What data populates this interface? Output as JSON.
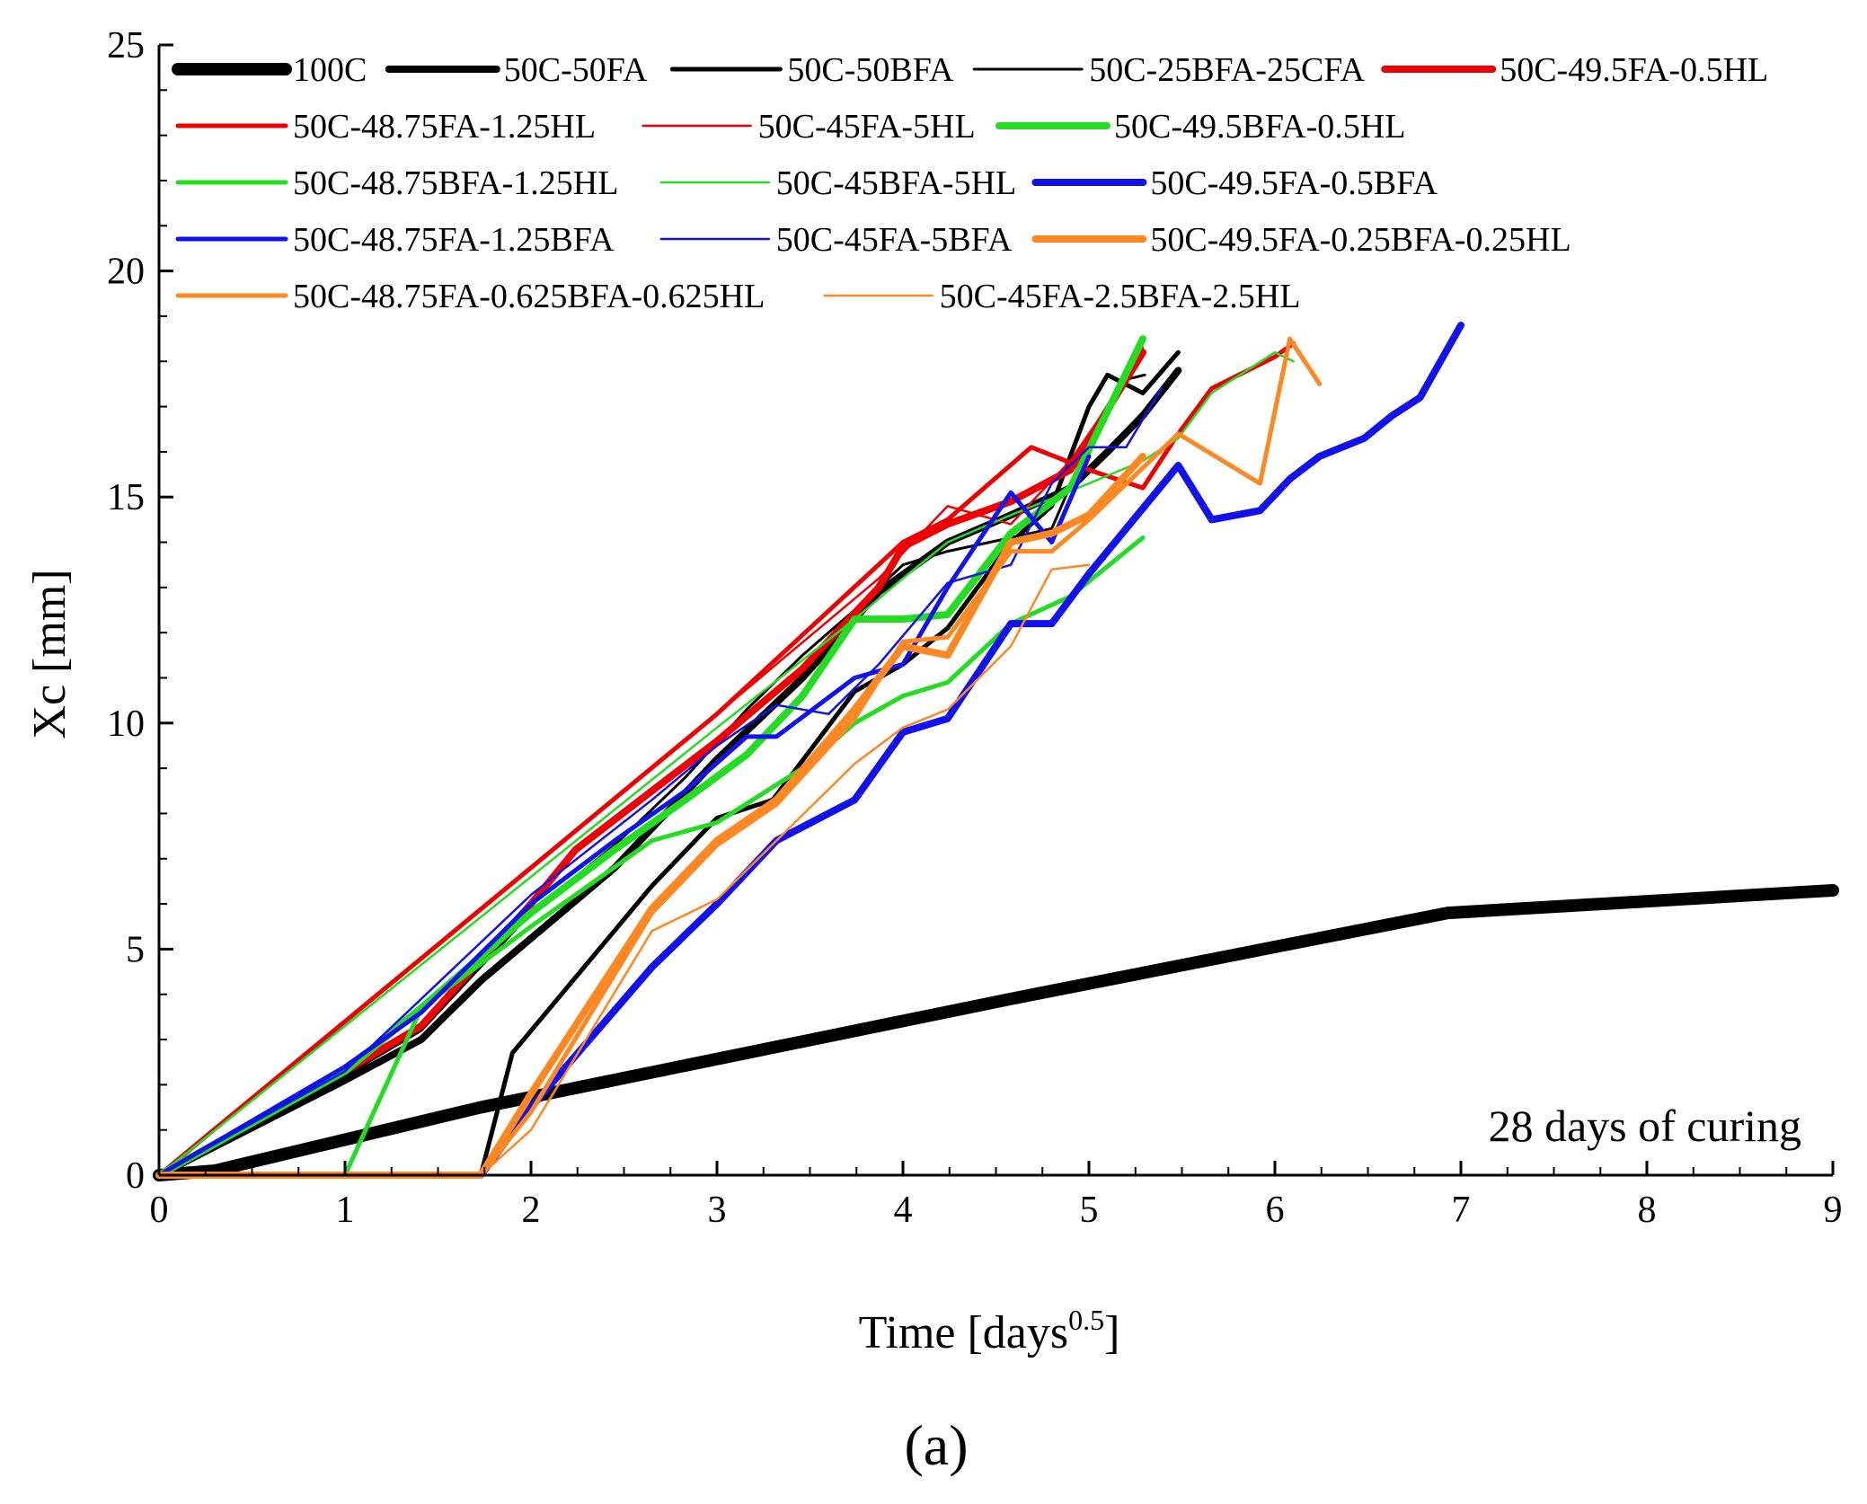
{
  "chart_data": {
    "type": "line",
    "xlabel": "Time [days",
    "xlabel_sup": "0.5",
    "xlabel_close": "]",
    "ylabel": "Xc [mm]",
    "xlim": [
      0,
      9
    ],
    "ylim": [
      0,
      25
    ],
    "xticks": [
      "0",
      "1",
      "2",
      "3",
      "4",
      "5",
      "6",
      "7",
      "8",
      "9"
    ],
    "yticks": [
      "0",
      "5",
      "10",
      "15",
      "20",
      "25"
    ],
    "annotation": "28 days of curing",
    "panel_label": "(a)",
    "series": [
      {
        "name": "100C",
        "color": "#000000",
        "width": 14,
        "points": [
          [
            0,
            0
          ],
          [
            0.3,
            0.1
          ],
          [
            1.73,
            1.5
          ],
          [
            4.58,
            3.9
          ],
          [
            6.93,
            5.8
          ],
          [
            9,
            6.3
          ]
        ]
      },
      {
        "name": "50C-50FA",
        "color": "#000000",
        "width": 8,
        "points": [
          [
            0,
            0
          ],
          [
            1,
            2.1
          ],
          [
            1.41,
            3.0
          ],
          [
            1.73,
            4.3
          ],
          [
            2.45,
            6.8
          ],
          [
            3,
            9.2
          ],
          [
            3.46,
            11.0
          ],
          [
            3.87,
            12.9
          ],
          [
            4.24,
            14.0
          ],
          [
            4.58,
            14.6
          ],
          [
            4.9,
            15.2
          ],
          [
            5.1,
            16.0
          ],
          [
            5.29,
            16.8
          ],
          [
            5.48,
            17.8
          ]
        ]
      },
      {
        "name": "50C-50BFA",
        "color": "#000000",
        "width": 5,
        "points": [
          [
            0,
            0
          ],
          [
            1.73,
            0
          ],
          [
            1.9,
            2.7
          ],
          [
            2.65,
            6.4
          ],
          [
            3,
            7.9
          ],
          [
            3.3,
            8.3
          ],
          [
            3.74,
            10.7
          ],
          [
            4,
            11.3
          ],
          [
            4.24,
            12.1
          ],
          [
            4.58,
            14.0
          ],
          [
            4.8,
            14.8
          ],
          [
            5,
            17.0
          ],
          [
            5.1,
            17.7
          ],
          [
            5.29,
            17.3
          ],
          [
            5.48,
            18.2
          ]
        ]
      },
      {
        "name": "50C-25BFA-25CFA",
        "color": "#000000",
        "width": 3,
        "points": [
          [
            0,
            0
          ],
          [
            1,
            2.2
          ],
          [
            1.41,
            3.2
          ],
          [
            2,
            5.8
          ],
          [
            2.45,
            7.3
          ],
          [
            2.83,
            8.8
          ],
          [
            3.16,
            10.3
          ],
          [
            3.46,
            11.5
          ],
          [
            3.74,
            12.5
          ],
          [
            4,
            13.5
          ],
          [
            4.24,
            13.8
          ],
          [
            4.58,
            14.1
          ],
          [
            4.8,
            14.3
          ],
          [
            5,
            16.2
          ],
          [
            5.2,
            17.6
          ],
          [
            5.3,
            17.7
          ]
        ]
      },
      {
        "name": "50C-49.5FA-0.5HL",
        "color": "#ee0000",
        "width": 8,
        "points": [
          [
            0,
            0
          ],
          [
            1,
            2.3
          ],
          [
            1.41,
            3.3
          ],
          [
            2,
            6.0
          ],
          [
            2.24,
            7.2
          ],
          [
            2.65,
            8.5
          ],
          [
            3,
            9.6
          ],
          [
            3.46,
            11.2
          ],
          [
            3.87,
            13.0
          ],
          [
            4,
            13.9
          ],
          [
            4.24,
            14.4
          ],
          [
            4.58,
            14.9
          ],
          [
            4.9,
            15.6
          ],
          [
            5.29,
            18.2
          ]
        ]
      },
      {
        "name": "50C-48.75FA-1.25HL",
        "color": "#ee0000",
        "width": 5,
        "points": [
          [
            0,
            0
          ],
          [
            1,
            3.4
          ],
          [
            2,
            6.8
          ],
          [
            3,
            10.2
          ],
          [
            4,
            14.0
          ],
          [
            4.24,
            14.5
          ],
          [
            4.69,
            16.1
          ],
          [
            5,
            15.6
          ],
          [
            5.29,
            15.2
          ],
          [
            5.48,
            16.4
          ],
          [
            5.66,
            17.4
          ],
          [
            6,
            18.1
          ],
          [
            6.1,
            18.4
          ]
        ]
      },
      {
        "name": "50C-45FA-5HL",
        "color": "#ee0000",
        "width": 2.5,
        "points": [
          [
            0,
            0
          ],
          [
            1,
            3.4
          ],
          [
            2,
            6.8
          ],
          [
            3,
            10.2
          ],
          [
            3.87,
            13.2
          ],
          [
            4.24,
            14.8
          ],
          [
            4.58,
            14.4
          ],
          [
            4.9,
            15.8
          ],
          [
            5.1,
            17.0
          ],
          [
            5.29,
            18.3
          ]
        ]
      },
      {
        "name": "50C-49.5BFA-0.5HL",
        "color": "#22dd22",
        "width": 8,
        "points": [
          [
            0,
            0
          ],
          [
            1,
            2.3
          ],
          [
            1.41,
            3.7
          ],
          [
            2,
            5.8
          ],
          [
            2.45,
            7.2
          ],
          [
            2.83,
            8.3
          ],
          [
            3.16,
            9.3
          ],
          [
            3.46,
            10.6
          ],
          [
            3.74,
            12.3
          ],
          [
            4,
            12.3
          ],
          [
            4.24,
            12.4
          ],
          [
            4.58,
            14.2
          ],
          [
            4.9,
            15.2
          ],
          [
            5.1,
            16.9
          ],
          [
            5.29,
            18.5
          ]
        ]
      },
      {
        "name": "50C-48.75BFA-1.25HL",
        "color": "#22dd22",
        "width": 5,
        "points": [
          [
            0,
            0
          ],
          [
            1,
            0
          ],
          [
            1.41,
            3.7
          ],
          [
            2,
            5.5
          ],
          [
            2.65,
            7.4
          ],
          [
            3,
            7.8
          ],
          [
            3.46,
            9.0
          ],
          [
            3.74,
            10.0
          ],
          [
            4,
            10.6
          ],
          [
            4.24,
            10.9
          ],
          [
            4.58,
            12.2
          ],
          [
            4.9,
            12.8
          ],
          [
            5.29,
            14.1
          ]
        ]
      },
      {
        "name": "50C-45BFA-5HL",
        "color": "#22dd22",
        "width": 2.5,
        "points": [
          [
            0,
            0
          ],
          [
            1,
            3.3
          ],
          [
            2,
            6.6
          ],
          [
            3,
            9.9
          ],
          [
            3.74,
            12.3
          ],
          [
            4,
            13.2
          ],
          [
            4.24,
            14.0
          ],
          [
            4.58,
            14.6
          ],
          [
            5,
            15.3
          ],
          [
            5.29,
            15.8
          ],
          [
            5.48,
            16.3
          ],
          [
            5.66,
            17.3
          ],
          [
            6,
            18.2
          ],
          [
            6.1,
            18.0
          ]
        ]
      },
      {
        "name": "50C-49.5FA-0.5BFA",
        "color": "#1111ee",
        "width": 8,
        "points": [
          [
            0,
            0
          ],
          [
            1.73,
            0
          ],
          [
            2,
            1.5
          ],
          [
            2.65,
            4.6
          ],
          [
            3,
            6.0
          ],
          [
            3.32,
            7.4
          ],
          [
            3.74,
            8.3
          ],
          [
            4,
            9.8
          ],
          [
            4.24,
            10.1
          ],
          [
            4.58,
            12.2
          ],
          [
            4.8,
            12.2
          ],
          [
            5,
            13.3
          ],
          [
            5.48,
            15.7
          ],
          [
            5.66,
            14.5
          ],
          [
            5.92,
            14.7
          ],
          [
            6.08,
            15.4
          ],
          [
            6.24,
            15.9
          ],
          [
            6.48,
            16.3
          ],
          [
            6.63,
            16.8
          ],
          [
            6.78,
            17.2
          ],
          [
            7,
            18.8
          ]
        ]
      },
      {
        "name": "50C-48.75FA-1.25BFA",
        "color": "#1111ee",
        "width": 5,
        "points": [
          [
            0,
            0
          ],
          [
            1,
            2.4
          ],
          [
            1.41,
            3.6
          ],
          [
            2,
            6.0
          ],
          [
            2.45,
            7.4
          ],
          [
            2.83,
            8.5
          ],
          [
            3.16,
            9.7
          ],
          [
            3.32,
            9.7
          ],
          [
            3.74,
            11.0
          ],
          [
            4,
            11.3
          ],
          [
            4.24,
            13.0
          ],
          [
            4.58,
            15.1
          ],
          [
            4.8,
            14.0
          ],
          [
            5,
            15.9
          ]
        ]
      },
      {
        "name": "50C-45FA-5BFA",
        "color": "#1111ee",
        "width": 2.5,
        "points": [
          [
            0,
            0
          ],
          [
            1,
            2.3
          ],
          [
            2,
            6.2
          ],
          [
            2.65,
            8.3
          ],
          [
            3,
            9.5
          ],
          [
            3.32,
            10.4
          ],
          [
            3.6,
            10.2
          ],
          [
            3.87,
            11.3
          ],
          [
            4.24,
            13.1
          ],
          [
            4.58,
            13.5
          ],
          [
            4.8,
            15.3
          ],
          [
            5,
            16.1
          ],
          [
            5.2,
            16.1
          ],
          [
            5.39,
            17.4
          ]
        ]
      },
      {
        "name": "50C-49.5FA-0.25BFA-0.25HL",
        "color": "#ff8822",
        "width": 8,
        "points": [
          [
            0,
            0
          ],
          [
            1.73,
            0
          ],
          [
            2,
            1.8
          ],
          [
            2.65,
            5.9
          ],
          [
            3,
            7.4
          ],
          [
            3.32,
            8.3
          ],
          [
            3.74,
            10.3
          ],
          [
            4,
            11.7
          ],
          [
            4.24,
            11.5
          ],
          [
            4.58,
            14.0
          ],
          [
            4.8,
            14.2
          ],
          [
            5,
            14.6
          ],
          [
            5.29,
            15.9
          ]
        ]
      },
      {
        "name": "50C-48.75FA-0.625BFA-0.625HL",
        "color": "#ff8822",
        "width": 5,
        "points": [
          [
            0,
            0
          ],
          [
            1.73,
            0
          ],
          [
            2,
            1.4
          ],
          [
            2.65,
            5.8
          ],
          [
            3,
            7.3
          ],
          [
            3.32,
            8.2
          ],
          [
            3.74,
            10.1
          ],
          [
            4,
            11.8
          ],
          [
            4.24,
            11.9
          ],
          [
            4.58,
            13.8
          ],
          [
            4.8,
            13.8
          ],
          [
            5,
            14.5
          ],
          [
            5.48,
            16.4
          ],
          [
            5.92,
            15.3
          ],
          [
            6.08,
            18.5
          ],
          [
            6.24,
            17.5
          ]
        ]
      },
      {
        "name": "50C-45FA-2.5BFA-2.5HL",
        "color": "#ff8822",
        "width": 2.5,
        "points": [
          [
            0,
            0
          ],
          [
            1.73,
            0
          ],
          [
            2,
            1.0
          ],
          [
            2.65,
            5.4
          ],
          [
            3,
            6.1
          ],
          [
            3.32,
            7.4
          ],
          [
            3.74,
            9.1
          ],
          [
            4,
            9.9
          ],
          [
            4.24,
            10.3
          ],
          [
            4.58,
            11.7
          ],
          [
            4.8,
            13.4
          ],
          [
            5,
            13.5
          ]
        ]
      }
    ]
  }
}
